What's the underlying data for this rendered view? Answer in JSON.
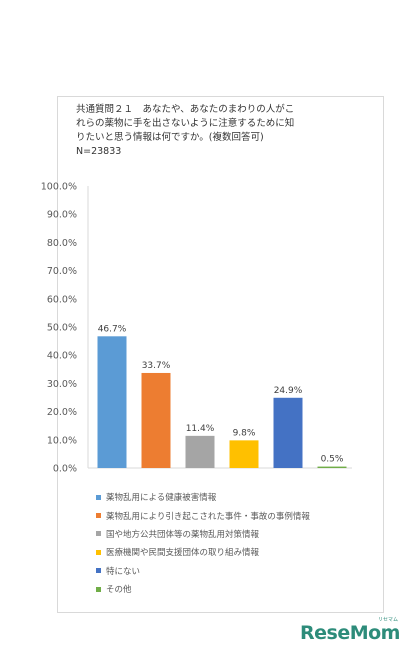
{
  "title": {
    "line1": "共通質問２１　あなたや、あなたのまわりの人がこ",
    "line2": "れらの薬物に手を出さないように注意するために知",
    "line3": "りたいと思う情報は何ですか。(複数回答可)",
    "n": "N=23833"
  },
  "watermark": {
    "text": "ReseMom",
    "small": "リセマム"
  },
  "chart_data": {
    "type": "bar",
    "categories": [
      "薬物乱用による健康被害情報",
      "薬物乱用により引き起こされた事件・事故の事例情報",
      "国や地方公共団体等の薬物乱用対策情報",
      "医療機関や民間支援団体の取り組み情報",
      "特にない",
      "その他"
    ],
    "values": [
      46.7,
      33.7,
      11.4,
      9.8,
      24.9,
      0.5
    ],
    "data_labels": [
      "46.7%",
      "33.7%",
      "11.4%",
      "9.8%",
      "24.9%",
      "0.5%"
    ],
    "colors": [
      "#5b9bd5",
      "#ed7d31",
      "#a5a5a5",
      "#ffc000",
      "#4472c4",
      "#70ad47"
    ],
    "ylim": [
      0,
      100
    ],
    "yticks": [
      "0.0%",
      "10.0%",
      "20.0%",
      "30.0%",
      "40.0%",
      "50.0%",
      "60.0%",
      "70.0%",
      "80.0%",
      "90.0%",
      "100.0%"
    ],
    "legend_position": "bottom",
    "grid": false
  }
}
